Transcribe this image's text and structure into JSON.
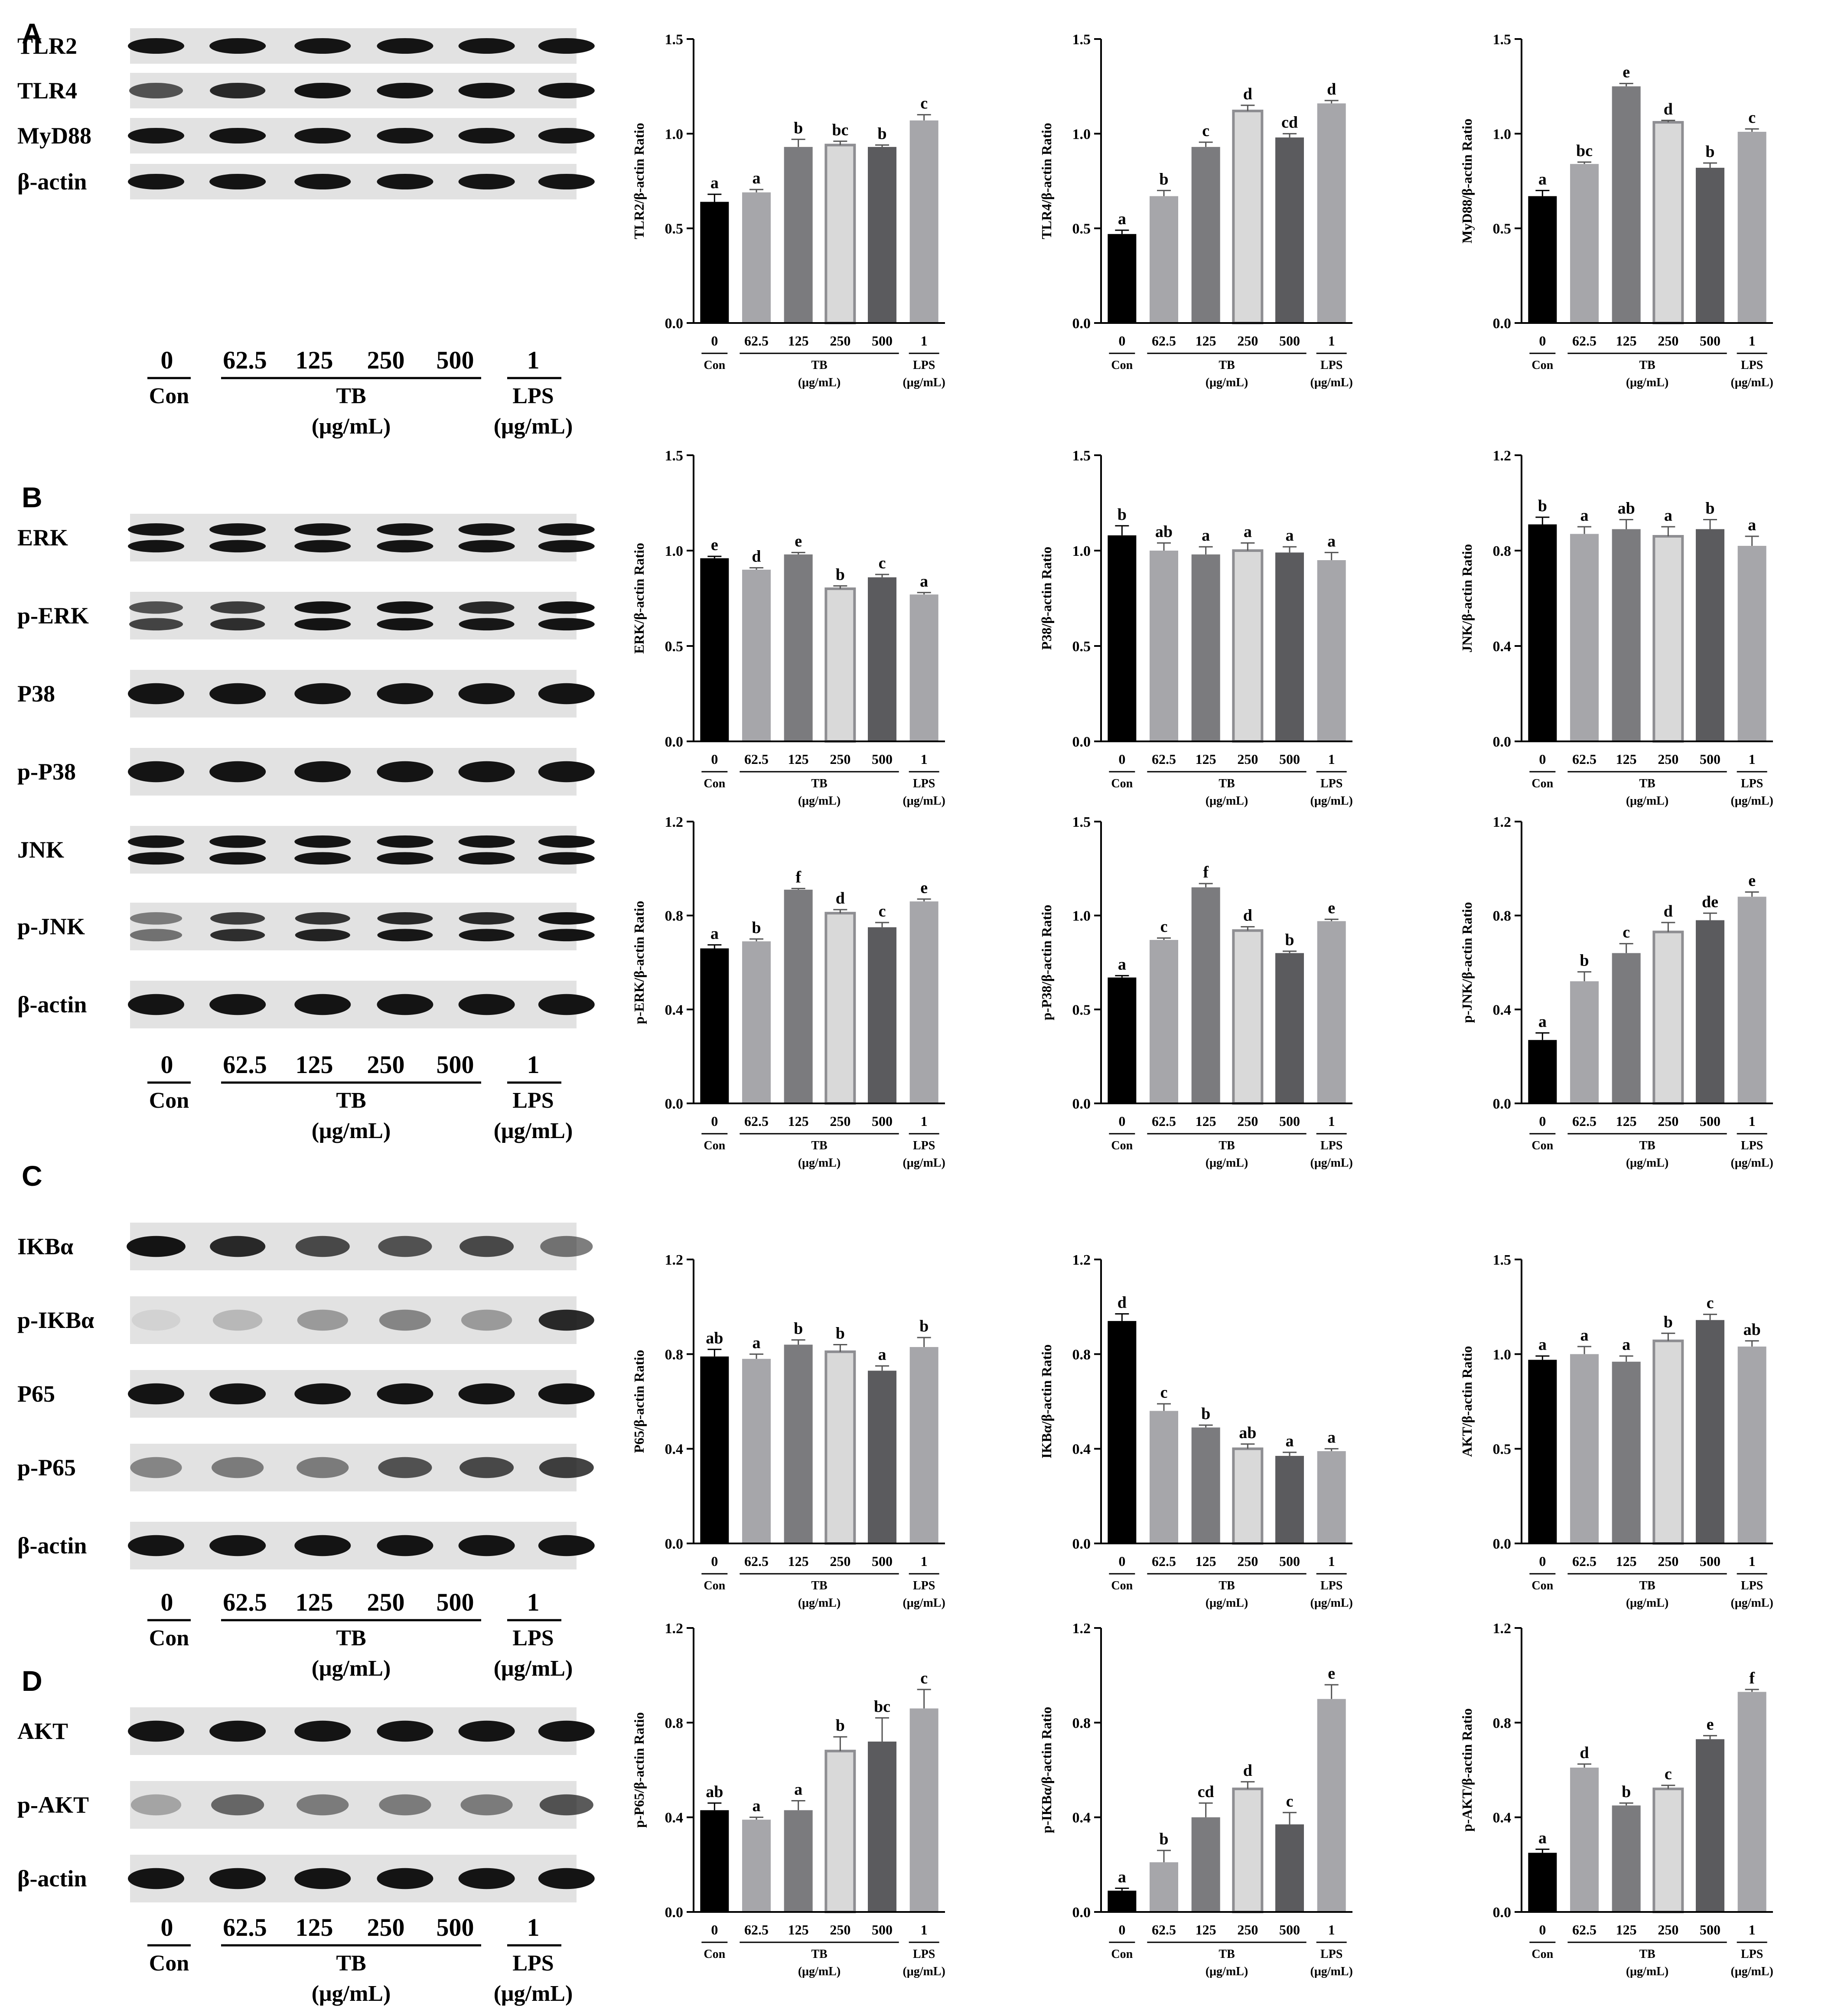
{
  "panel_letters": [
    "A",
    "B",
    "C",
    "D"
  ],
  "colors": {
    "con": "#000000",
    "tb62": "#a6a6aa",
    "tb125": "#7b7b7e",
    "tb250": "#d9d9d9",
    "tb250_border": "#8e8e92",
    "tb500": "#5b5b5e",
    "lps": "#a6a6aa",
    "blot_bg": "#e2e2e2",
    "band": "#141414"
  },
  "blot_lanes": {
    "numbers": [
      "0",
      "62.5",
      "125",
      "250",
      "500",
      "1"
    ],
    "con_label": "Con",
    "tb_label": "TB",
    "lps_label": "LPS",
    "unit": "(μg/mL)"
  },
  "blots": {
    "A": [
      "TLR2",
      "TLR4",
      "MyD88",
      "β-actin"
    ],
    "B": [
      "ERK",
      "p-ERK",
      "P38",
      "p-P38",
      "JNK",
      "p-JNK",
      "β-actin"
    ],
    "C": [
      "IKBα",
      "p-IKBα",
      "P65",
      "p-P65",
      "β-actin"
    ],
    "D": [
      "AKT",
      "p-AKT",
      "β-actin"
    ]
  },
  "chart_axis_labels": {
    "categories": [
      "0",
      "62.5",
      "125",
      "250",
      "500",
      "1"
    ],
    "con": "Con",
    "tb": "TB",
    "lps": "LPS",
    "unit": "(μg/mL)"
  },
  "chart_data": [
    {
      "type": "bar",
      "ylabel": "TLR2/β-actin Ratio",
      "ylim": [
        0,
        1.5
      ],
      "yticks": [
        "0.0",
        "0.5",
        "1.0",
        "1.5"
      ],
      "values": [
        0.64,
        0.69,
        0.93,
        0.94,
        0.93,
        1.07
      ],
      "errors": [
        0.04,
        0.015,
        0.04,
        0.02,
        0.01,
        0.03
      ],
      "sig": [
        "a",
        "a",
        "b",
        "bc",
        "b",
        "c"
      ]
    },
    {
      "type": "bar",
      "ylabel": "TLR4/β-actin Ratio",
      "ylim": [
        0,
        1.5
      ],
      "yticks": [
        "0.0",
        "0.5",
        "1.0",
        "1.5"
      ],
      "values": [
        0.47,
        0.67,
        0.93,
        1.12,
        0.98,
        1.16
      ],
      "errors": [
        0.02,
        0.03,
        0.025,
        0.03,
        0.02,
        0.015
      ],
      "sig": [
        "a",
        "b",
        "c",
        "d",
        "cd",
        "d"
      ]
    },
    {
      "type": "bar",
      "ylabel": "MyD88/β-actin Ratio",
      "ylim": [
        0,
        1.5
      ],
      "yticks": [
        "0.0",
        "0.5",
        "1.0",
        "1.5"
      ],
      "values": [
        0.67,
        0.84,
        1.25,
        1.06,
        0.82,
        1.01
      ],
      "errors": [
        0.03,
        0.01,
        0.015,
        0.01,
        0.025,
        0.015
      ],
      "sig": [
        "a",
        "bc",
        "e",
        "d",
        "b",
        "c"
      ]
    },
    {
      "type": "bar",
      "ylabel": "ERK/β-actin Ratio",
      "ylim": [
        0,
        1.5
      ],
      "yticks": [
        "0.0",
        "0.5",
        "1.0",
        "1.5"
      ],
      "values": [
        0.96,
        0.9,
        0.98,
        0.8,
        0.86,
        0.77
      ],
      "errors": [
        0.01,
        0.01,
        0.01,
        0.015,
        0.015,
        0.01
      ],
      "sig": [
        "e",
        "d",
        "e",
        "b",
        "c",
        "a"
      ]
    },
    {
      "type": "bar",
      "ylabel": "P38/β-actin Ratio",
      "ylim": [
        0,
        1.5
      ],
      "yticks": [
        "0.0",
        "0.5",
        "1.0",
        "1.5"
      ],
      "values": [
        1.08,
        1.0,
        0.98,
        1.0,
        0.99,
        0.95
      ],
      "errors": [
        0.05,
        0.04,
        0.04,
        0.04,
        0.03,
        0.04
      ],
      "sig": [
        "b",
        "ab",
        "a",
        "a",
        "a",
        "a"
      ]
    },
    {
      "type": "bar",
      "ylabel": "JNK/β-actin Ratio",
      "ylim": [
        0,
        1.2
      ],
      "yticks": [
        "0.0",
        "0.4",
        "0.8",
        "1.2"
      ],
      "values": [
        0.91,
        0.87,
        0.89,
        0.86,
        0.89,
        0.82
      ],
      "errors": [
        0.03,
        0.03,
        0.04,
        0.04,
        0.04,
        0.04
      ],
      "sig": [
        "b",
        "a",
        "ab",
        "a",
        "b",
        "a"
      ]
    },
    {
      "type": "bar",
      "ylabel": "p-ERK/β-actin Ratio",
      "ylim": [
        0,
        1.2
      ],
      "yticks": [
        "0.0",
        "0.4",
        "0.8",
        "1.2"
      ],
      "values": [
        0.66,
        0.69,
        0.91,
        0.81,
        0.75,
        0.86
      ],
      "errors": [
        0.015,
        0.01,
        0.005,
        0.015,
        0.02,
        0.01
      ],
      "sig": [
        "a",
        "b",
        "f",
        "d",
        "c",
        "e"
      ]
    },
    {
      "type": "bar",
      "ylabel": "p-P38/β-actin Ratio",
      "ylim": [
        0,
        1.5
      ],
      "yticks": [
        "0.0",
        "0.5",
        "1.0",
        "1.5"
      ],
      "values": [
        0.67,
        0.87,
        1.15,
        0.92,
        0.8,
        0.97
      ],
      "errors": [
        0.01,
        0.01,
        0.02,
        0.02,
        0.01,
        0.01
      ],
      "sig": [
        "a",
        "c",
        "f",
        "d",
        "b",
        "e"
      ]
    },
    {
      "type": "bar",
      "ylabel": "p-JNK/β-actin Ratio",
      "ylim": [
        0,
        1.2
      ],
      "yticks": [
        "0.0",
        "0.4",
        "0.8",
        "1.2"
      ],
      "values": [
        0.27,
        0.52,
        0.64,
        0.73,
        0.78,
        0.88
      ],
      "errors": [
        0.03,
        0.04,
        0.04,
        0.04,
        0.03,
        0.02
      ],
      "sig": [
        "a",
        "b",
        "c",
        "d",
        "de",
        "e"
      ]
    },
    {
      "type": "bar",
      "ylabel": "P65/β-actin Ratio",
      "ylim": [
        0,
        1.2
      ],
      "yticks": [
        "0.0",
        "0.4",
        "0.8",
        "1.2"
      ],
      "values": [
        0.79,
        0.78,
        0.84,
        0.81,
        0.73,
        0.83
      ],
      "errors": [
        0.03,
        0.02,
        0.02,
        0.03,
        0.02,
        0.04
      ],
      "sig": [
        "ab",
        "a",
        "b",
        "b",
        "a",
        "b"
      ]
    },
    {
      "type": "bar",
      "ylabel": "IKBα/β-actin Ratio",
      "ylim": [
        0,
        1.2
      ],
      "yticks": [
        "0.0",
        "0.4",
        "0.8",
        "1.2"
      ],
      "values": [
        0.94,
        0.56,
        0.49,
        0.4,
        0.37,
        0.39
      ],
      "errors": [
        0.03,
        0.03,
        0.01,
        0.02,
        0.015,
        0.01
      ],
      "sig": [
        "d",
        "c",
        "b",
        "ab",
        "a",
        "a"
      ]
    },
    {
      "type": "bar",
      "ylabel": "AKT/β-actin Ratio",
      "ylim": [
        0,
        1.5
      ],
      "yticks": [
        "0.0",
        "0.5",
        "1.0",
        "1.5"
      ],
      "values": [
        0.97,
        1.0,
        0.96,
        1.07,
        1.18,
        1.04
      ],
      "errors": [
        0.02,
        0.04,
        0.03,
        0.04,
        0.03,
        0.03
      ],
      "sig": [
        "a",
        "a",
        "a",
        "b",
        "c",
        "ab"
      ]
    },
    {
      "type": "bar",
      "ylabel": "p-P65/β-actin Ratio",
      "ylim": [
        0,
        1.2
      ],
      "yticks": [
        "0.0",
        "0.4",
        "0.8",
        "1.2"
      ],
      "values": [
        0.43,
        0.39,
        0.43,
        0.68,
        0.72,
        0.86
      ],
      "errors": [
        0.03,
        0.01,
        0.04,
        0.06,
        0.1,
        0.08
      ],
      "sig": [
        "ab",
        "a",
        "a",
        "b",
        "bc",
        "c"
      ]
    },
    {
      "type": "bar",
      "ylabel": "p-IKBα/β-actin Ratio",
      "ylim": [
        0,
        1.2
      ],
      "yticks": [
        "0.0",
        "0.4",
        "0.8",
        "1.2"
      ],
      "values": [
        0.09,
        0.21,
        0.4,
        0.52,
        0.37,
        0.9
      ],
      "errors": [
        0.01,
        0.05,
        0.06,
        0.03,
        0.05,
        0.06
      ],
      "sig": [
        "a",
        "b",
        "cd",
        "d",
        "c",
        "e"
      ]
    },
    {
      "type": "bar",
      "ylabel": "p-AKT/β-actin Ratio",
      "ylim": [
        0,
        1.2
      ],
      "yticks": [
        "0.0",
        "0.4",
        "0.8",
        "1.2"
      ],
      "values": [
        0.25,
        0.61,
        0.45,
        0.52,
        0.73,
        0.93
      ],
      "errors": [
        0.015,
        0.015,
        0.01,
        0.015,
        0.015,
        0.01
      ],
      "sig": [
        "a",
        "d",
        "b",
        "c",
        "e",
        "f"
      ]
    }
  ]
}
